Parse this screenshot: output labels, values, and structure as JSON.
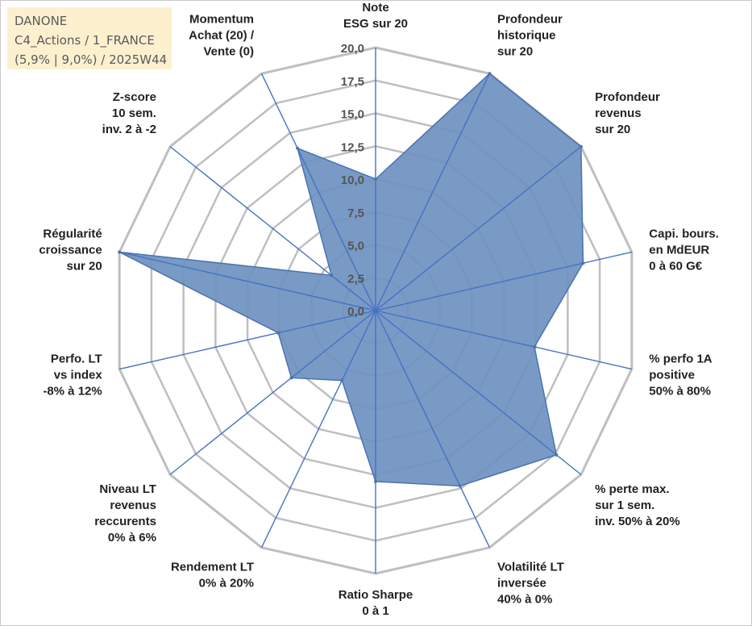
{
  "info": {
    "company": "DANONE",
    "line2": "C4_Actions / 1_FRANCE",
    "line3": "(5,9% | 9,0%) / 2025W44"
  },
  "chart_data": {
    "type": "radar",
    "rmax": 20,
    "tick_step": 2.5,
    "tick_labels": [
      "0,0",
      "2,5",
      "5,0",
      "7,5",
      "10,0",
      "12,5",
      "15,0",
      "17,5",
      "20,0"
    ],
    "axes": [
      [
        "Note",
        "ESG sur 20"
      ],
      [
        "Profondeur",
        "historique",
        "sur 20"
      ],
      [
        "Profondeur",
        "revenus",
        "sur 20"
      ],
      [
        "Capi. bours.",
        "en MdEUR",
        "0 à 60 G€"
      ],
      [
        "% perfo 1A",
        "positive",
        "50% à 80%"
      ],
      [
        "% perte max.",
        "sur 1 sem.",
        "inv. 50% à 20%"
      ],
      [
        "Volatilité LT",
        "inversée",
        "40% à 0%"
      ],
      [
        "Ratio Sharpe",
        "0 à 1"
      ],
      [
        "Rendement LT",
        "0% à 20%"
      ],
      [
        "Niveau LT",
        "revenus",
        "reccurents",
        "0% à 6%"
      ],
      [
        "Perfo. LT",
        "vs index",
        "-8% à 12%"
      ],
      [
        "Régularité",
        "croissance",
        "sur 20"
      ],
      [
        "Z-score",
        "10 sem.",
        "inv. 2 à -2"
      ],
      [
        "Momentum",
        "Achat (20) /",
        "Vente (0)"
      ]
    ],
    "values": [
      10,
      20,
      20,
      16.2,
      12.4,
      17.6,
      14.8,
      13,
      5.9,
      8.2,
      7.6,
      20,
      4.3,
      13.7
    ],
    "colors": {
      "fill": "#6e91c0",
      "stroke": "#4a73b0",
      "spoke": "#4472c4",
      "grid": "#bfbfbf"
    }
  }
}
